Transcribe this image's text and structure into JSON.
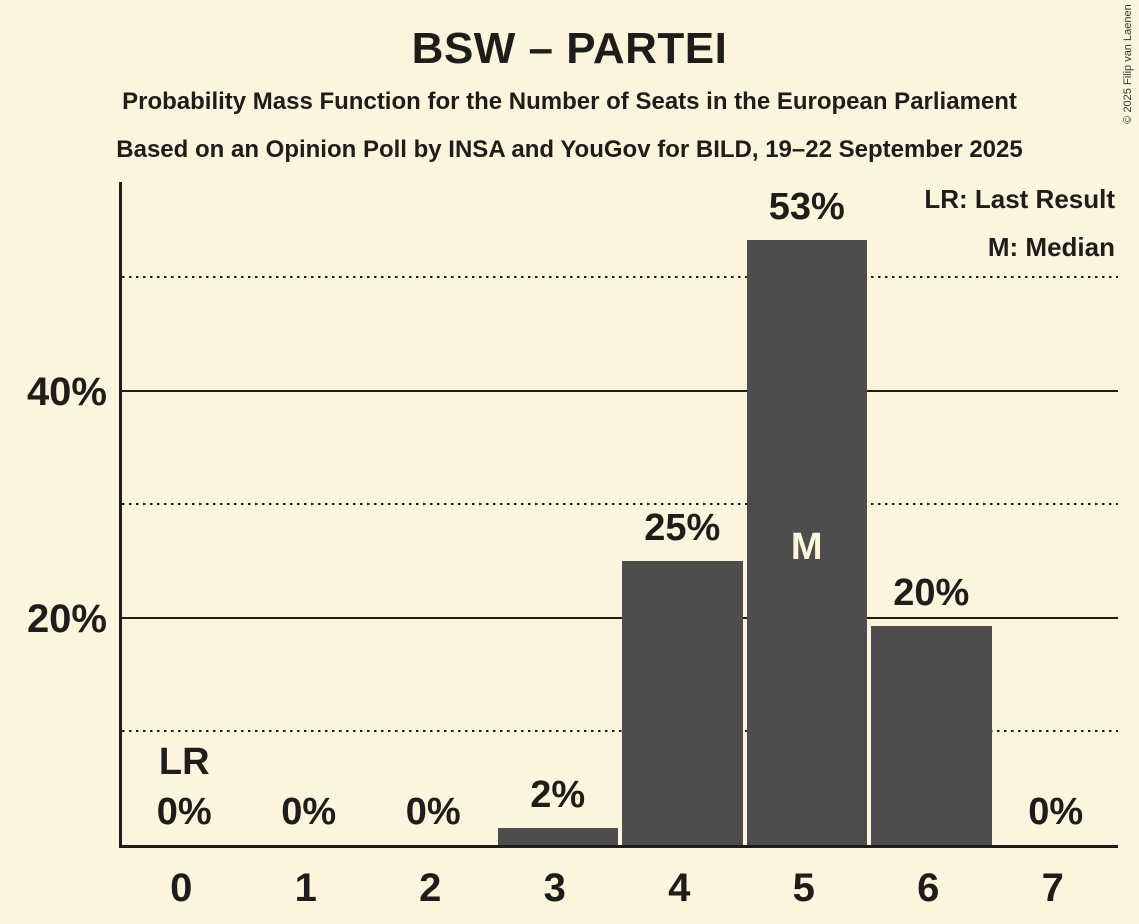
{
  "chart_data": {
    "type": "bar",
    "title": "BSW – PARTEI",
    "subtitle": "Probability Mass Function for the Number of Seats in the European Parliament",
    "source_line": "Based on an Opinion Poll by INSA and YouGov for BILD, 19–22 September 2025",
    "copyright": "© 2025 Filip van Laenen",
    "legend": {
      "lr": "LR: Last Result",
      "m": "M: Median"
    },
    "xlabel": "",
    "ylabel": "",
    "categories": [
      "0",
      "1",
      "2",
      "3",
      "4",
      "5",
      "6",
      "7"
    ],
    "values_pct": [
      0,
      0,
      0,
      2,
      25,
      53,
      20,
      0
    ],
    "bar_labels": [
      "0%",
      "0%",
      "0%",
      "2%",
      "25%",
      "53%",
      "20%",
      "0%"
    ],
    "render_heights_pct": [
      0,
      0,
      0,
      1.5,
      25,
      53.3,
      19.3,
      0
    ],
    "median_index": 5,
    "median_marker": "M",
    "last_result_index": 0,
    "last_result_marker": "LR",
    "y_axis": {
      "ymax_pct": 58.4,
      "solid_ticks": [
        {
          "pct": 20,
          "label": "20%"
        },
        {
          "pct": 40,
          "label": "40%"
        }
      ],
      "dotted_gridlines_pct": [
        10,
        30,
        50
      ],
      "grid": "horizontal only"
    },
    "legend_position": "top-right",
    "colors": {
      "background": "#FCF5DE",
      "bar": "#4D4D4D",
      "text": "#1F1D1A",
      "median_text": "#FCF5DE"
    }
  }
}
